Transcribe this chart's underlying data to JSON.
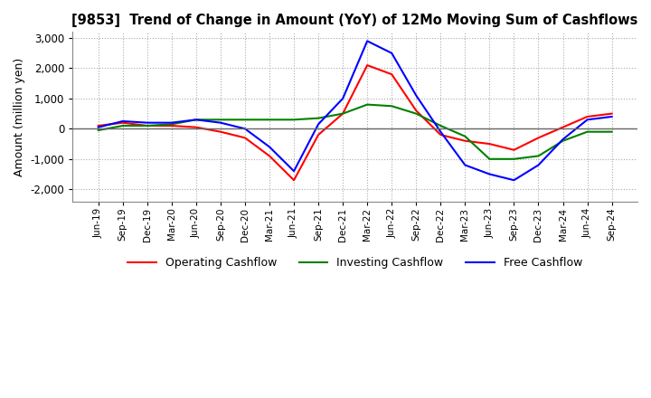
{
  "title": "[9853]  Trend of Change in Amount (YoY) of 12Mo Moving Sum of Cashflows",
  "ylabel": "Amount (million yen)",
  "ylim": [
    -2400,
    3200
  ],
  "yticks": [
    -2000,
    -1000,
    0,
    1000,
    2000,
    3000
  ],
  "background_color": "#ffffff",
  "plot_bg_color": "#ffffff",
  "grid_color": "#aaaaaa",
  "legend": [
    "Operating Cashflow",
    "Investing Cashflow",
    "Free Cashflow"
  ],
  "legend_colors": [
    "#ff0000",
    "#008000",
    "#0000ff"
  ],
  "x_labels": [
    "Jun-19",
    "Sep-19",
    "Dec-19",
    "Mar-20",
    "Jun-20",
    "Sep-20",
    "Dec-20",
    "Mar-21",
    "Jun-21",
    "Sep-21",
    "Dec-21",
    "Mar-22",
    "Jun-22",
    "Sep-22",
    "Dec-22",
    "Mar-23",
    "Jun-23",
    "Sep-23",
    "Dec-23",
    "Mar-24",
    "Jun-24",
    "Sep-24"
  ],
  "operating_cashflow": [
    100,
    200,
    100,
    100,
    50,
    -100,
    -300,
    -900,
    -1700,
    -200,
    500,
    2100,
    1800,
    600,
    -200,
    -400,
    -500,
    -700,
    -300,
    50,
    400,
    500
  ],
  "investing_cashflow": [
    -50,
    100,
    100,
    150,
    300,
    300,
    300,
    300,
    300,
    350,
    500,
    800,
    750,
    500,
    100,
    -250,
    -1000,
    -1000,
    -900,
    -400,
    -100,
    -100
  ],
  "free_cashflow": [
    50,
    250,
    200,
    200,
    300,
    200,
    0,
    -600,
    -1400,
    150,
    1000,
    2900,
    2500,
    1100,
    -100,
    -1200,
    -1500,
    -1700,
    -1200,
    -350,
    300,
    400
  ]
}
